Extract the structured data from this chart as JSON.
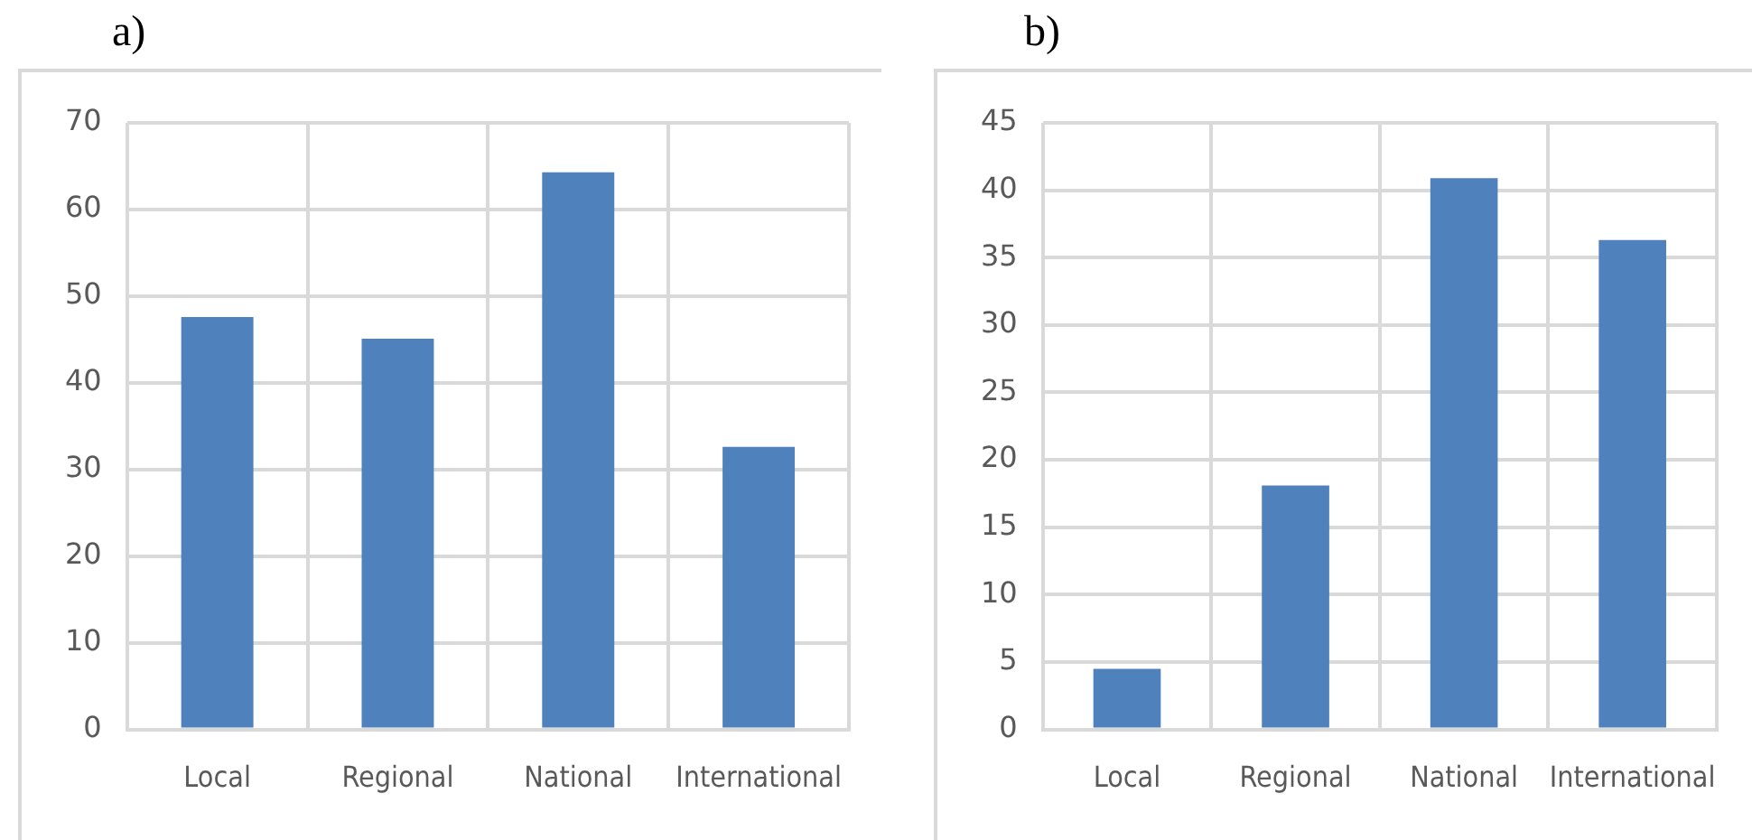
{
  "chart_data": [
    {
      "type": "bar",
      "title": "a)",
      "categories": [
        "Local",
        "Regional",
        "National",
        "International"
      ],
      "values": [
        47.6,
        45.1,
        64.3,
        32.6
      ],
      "color": "#4f81bd",
      "ylim": [
        0,
        70
      ],
      "yticks": [
        0,
        10,
        20,
        30,
        40,
        50,
        60,
        70
      ],
      "grid": true,
      "legend": false
    },
    {
      "type": "bar",
      "title": "b)",
      "categories": [
        "Local",
        "Regional",
        "National",
        "International"
      ],
      "values": [
        4.5,
        18.1,
        40.9,
        36.3
      ],
      "color": "#4f81bd",
      "ylim": [
        0,
        45
      ],
      "yticks": [
        0,
        5,
        10,
        15,
        20,
        25,
        30,
        35,
        40,
        45
      ],
      "grid": true,
      "legend": false
    }
  ]
}
